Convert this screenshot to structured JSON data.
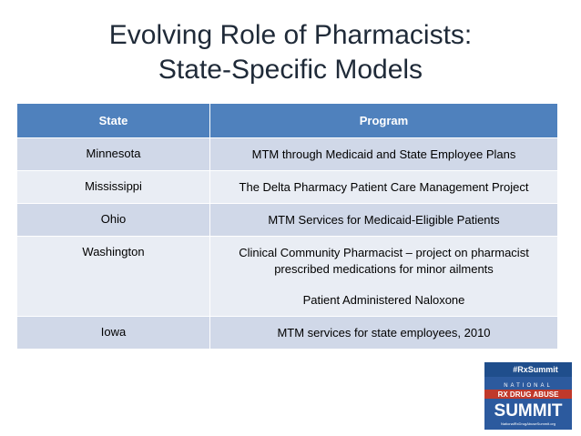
{
  "title": {
    "lines": [
      "Evolving Role of Pharmacists:",
      "State-Specific Models"
    ]
  },
  "table": {
    "header": [
      "State",
      "Program"
    ],
    "rows": [
      {
        "state": "Minnesota",
        "program": [
          "MTM through Medicaid and State Employee Plans"
        ]
      },
      {
        "state": "Mississippi",
        "program": [
          "The Delta Pharmacy Patient Care Management Project"
        ]
      },
      {
        "state": "Ohio",
        "program": [
          "MTM Services for Medicaid-Eligible Patients"
        ]
      },
      {
        "state": "Washington",
        "program": [
          "Clinical Community Pharmacist – project on pharmacist prescribed medications for minor ailments",
          "Patient Administered Naloxone"
        ]
      },
      {
        "state": "Iowa",
        "program": [
          "MTM services for state employees, 2010"
        ]
      }
    ]
  },
  "logo": {
    "hashtag": "#RxSummit",
    "lines": [
      "NATIONAL",
      "RX DRUG ABUSE",
      "SUMMIT"
    ],
    "url": "NationalRxDrugAbuseSummit.org"
  }
}
